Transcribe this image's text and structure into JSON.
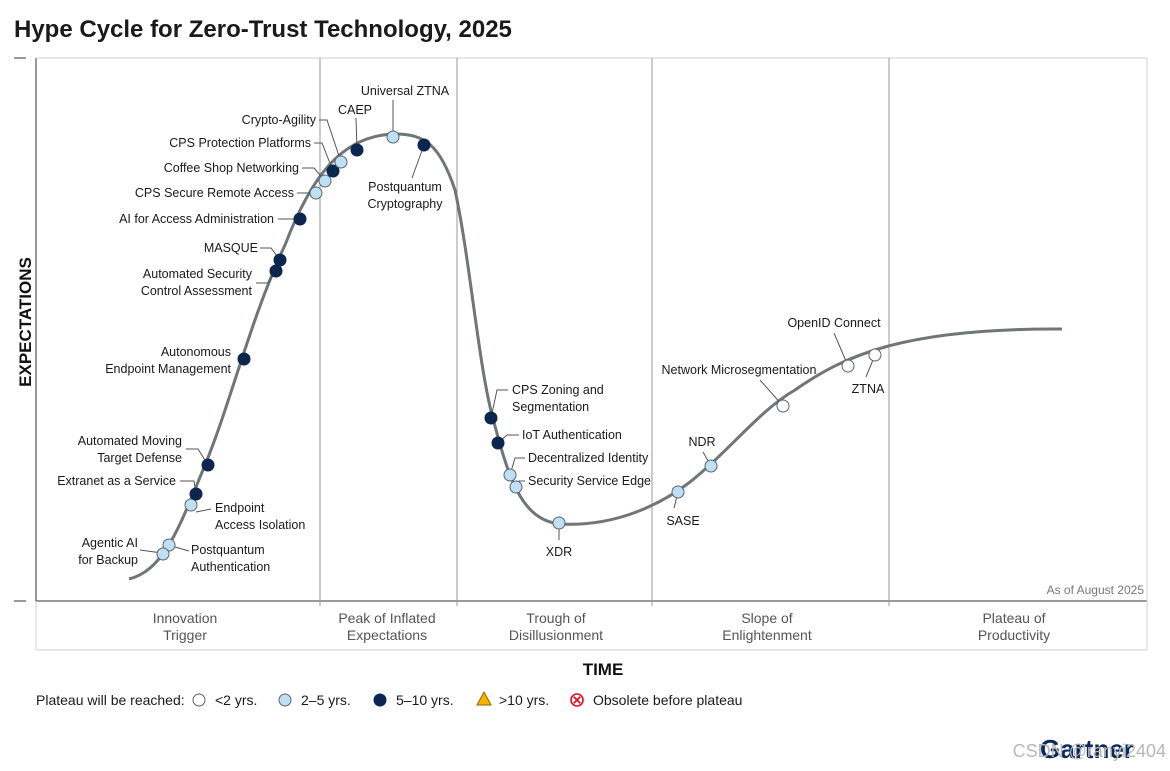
{
  "chart_data": {
    "type": "scatter",
    "title": "Hype Cycle for Zero-Trust Technology, 2025",
    "xlabel": "TIME",
    "ylabel": "EXPECTATIONS",
    "note": "As of August 2025",
    "phases": [
      {
        "line1": "Innovation",
        "line2": "Trigger"
      },
      {
        "line1": "Peak of Inflated",
        "line2": "Expectations"
      },
      {
        "line1": "Trough of",
        "line2": "Disillusionment"
      },
      {
        "line1": "Slope of",
        "line2": "Enlightenment"
      },
      {
        "line1": "Plateau of",
        "line2": "Productivity"
      }
    ],
    "legend": {
      "title": "Plateau will be reached:",
      "items": [
        {
          "key": "lt2",
          "label": "<2 yrs.",
          "color": "#ffffff"
        },
        {
          "key": "2to5",
          "label": "2–5 yrs.",
          "color": "#bfe0f2"
        },
        {
          "key": "5to10",
          "label": "5–10 yrs.",
          "color": "#0c2650"
        },
        {
          "key": "gt10",
          "label": ">10 yrs.",
          "color": "#f5b400"
        },
        {
          "key": "obsolete",
          "label": "Obsolete before plateau",
          "color": "#e0101e"
        }
      ]
    },
    "technologies": [
      {
        "name": "Agentic AI for Backup",
        "label_lines": [
          "Agentic AI",
          "for Backup"
        ],
        "category": "2to5"
      },
      {
        "name": "Postquantum Authentication",
        "label_lines": [
          "Postquantum",
          "Authentication"
        ],
        "category": "2to5"
      },
      {
        "name": "Endpoint Access Isolation",
        "label_lines": [
          "Endpoint",
          "Access Isolation"
        ],
        "category": "2to5"
      },
      {
        "name": "Extranet as a Service",
        "label_lines": [
          "Extranet as a Service"
        ],
        "category": "5to10"
      },
      {
        "name": "Automated Moving Target Defense",
        "label_lines": [
          "Automated Moving",
          "Target Defense"
        ],
        "category": "5to10"
      },
      {
        "name": "Autonomous Endpoint Management",
        "label_lines": [
          "Autonomous",
          "Endpoint Management"
        ],
        "category": "5to10"
      },
      {
        "name": "Automated Security Control Assessment",
        "label_lines": [
          "Automated Security",
          "Control Assessment"
        ],
        "category": "5to10"
      },
      {
        "name": "MASQUE",
        "label_lines": [
          "MASQUE"
        ],
        "category": "5to10"
      },
      {
        "name": "AI for Access Administration",
        "label_lines": [
          "AI for Access Administration"
        ],
        "category": "5to10"
      },
      {
        "name": "CPS Secure Remote Access",
        "label_lines": [
          "CPS Secure Remote Access"
        ],
        "category": "2to5"
      },
      {
        "name": "Coffee Shop Networking",
        "label_lines": [
          "Coffee Shop Networking"
        ],
        "category": "2to5"
      },
      {
        "name": "CPS Protection Platforms",
        "label_lines": [
          "CPS Protection Platforms"
        ],
        "category": "5to10"
      },
      {
        "name": "Crypto-Agility",
        "label_lines": [
          "Crypto-Agility"
        ],
        "category": "2to5"
      },
      {
        "name": "CAEP",
        "label_lines": [
          "CAEP"
        ],
        "category": "5to10"
      },
      {
        "name": "Universal ZTNA",
        "label_lines": [
          "Universal ZTNA"
        ],
        "category": "2to5"
      },
      {
        "name": "Postquantum Cryptography",
        "label_lines": [
          "Postquantum",
          "Cryptography"
        ],
        "category": "5to10"
      },
      {
        "name": "CPS Zoning and Segmentation",
        "label_lines": [
          "CPS Zoning and",
          "Segmentation"
        ],
        "category": "5to10"
      },
      {
        "name": "IoT Authentication",
        "label_lines": [
          "IoT Authentication"
        ],
        "category": "5to10"
      },
      {
        "name": "Decentralized Identity",
        "label_lines": [
          "Decentralized Identity"
        ],
        "category": "2to5"
      },
      {
        "name": "Security Service Edge",
        "label_lines": [
          "Security Service Edge"
        ],
        "category": "2to5"
      },
      {
        "name": "XDR",
        "label_lines": [
          "XDR"
        ],
        "category": "2to5"
      },
      {
        "name": "SASE",
        "label_lines": [
          "SASE"
        ],
        "category": "2to5"
      },
      {
        "name": "NDR",
        "label_lines": [
          "NDR"
        ],
        "category": "2to5"
      },
      {
        "name": "Network Microsegmentation",
        "label_lines": [
          "Network Microsegmentation"
        ],
        "category": "lt2"
      },
      {
        "name": "OpenID Connect",
        "label_lines": [
          "OpenID Connect"
        ],
        "category": "lt2"
      },
      {
        "name": "ZTNA",
        "label_lines": [
          "ZTNA"
        ],
        "category": "lt2"
      }
    ]
  },
  "brand": "Gartner",
  "watermark": "CSDN @ranyi2404"
}
